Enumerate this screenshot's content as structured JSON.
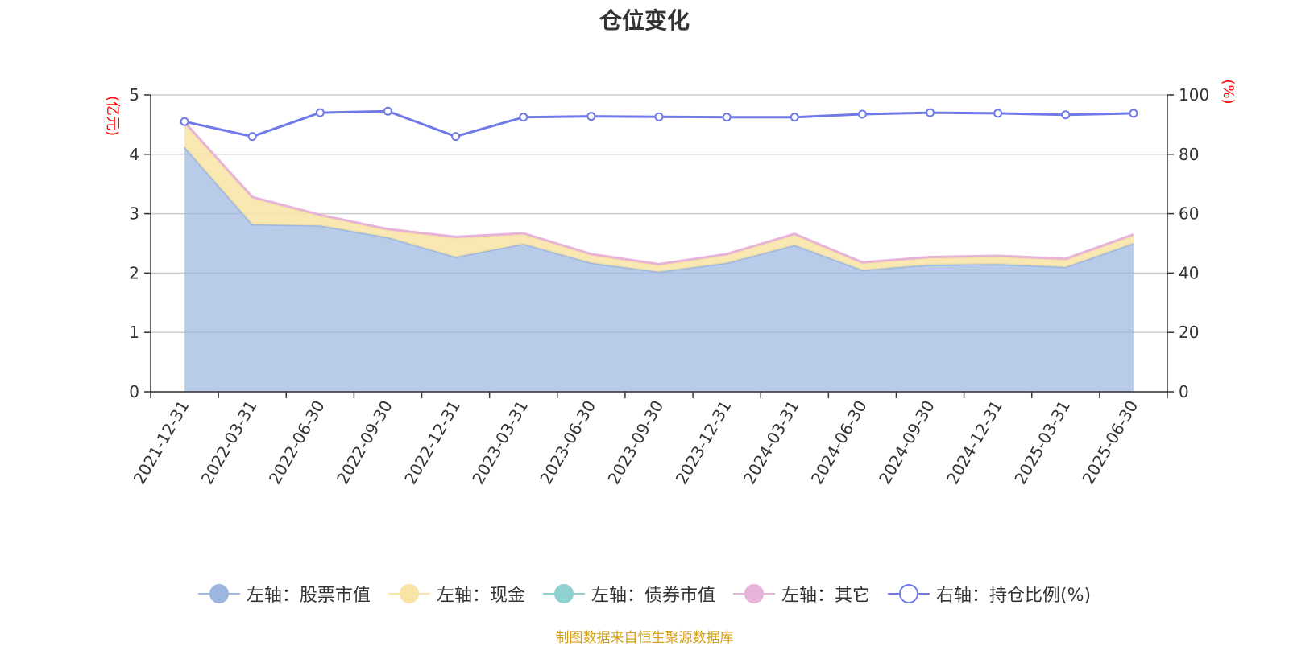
{
  "chart_data": {
    "type": "area",
    "title": "仓位变化",
    "x": [
      "2021-12-31",
      "2022-03-31",
      "2022-06-30",
      "2022-09-30",
      "2022-12-31",
      "2023-03-31",
      "2023-06-30",
      "2023-09-30",
      "2023-12-31",
      "2024-03-31",
      "2024-06-30",
      "2024-09-30",
      "2024-12-31",
      "2025-03-31",
      "2025-06-30"
    ],
    "left_axis": {
      "unit": "(亿元)",
      "ylim": [
        0,
        5
      ],
      "ticks": [
        "0",
        "1",
        "2",
        "3",
        "4",
        "5"
      ]
    },
    "right_axis": {
      "unit": "(%)",
      "ylim": [
        0,
        100
      ],
      "ticks": [
        "0",
        "20",
        "40",
        "60",
        "80",
        "100"
      ]
    },
    "grid": true,
    "stacked": true,
    "legend_position": "bottom",
    "series": [
      {
        "name": "左轴：股票市值",
        "axis": "left",
        "kind": "area",
        "color": "#9db7e0",
        "values": [
          4.12,
          2.82,
          2.8,
          2.6,
          2.27,
          2.49,
          2.17,
          2.02,
          2.17,
          2.47,
          2.05,
          2.14,
          2.15,
          2.1,
          2.5
        ]
      },
      {
        "name": "左轴：现金",
        "axis": "left",
        "kind": "area",
        "color": "#f8e4a5",
        "values": [
          0.4,
          0.44,
          0.16,
          0.12,
          0.32,
          0.16,
          0.13,
          0.11,
          0.13,
          0.17,
          0.11,
          0.11,
          0.12,
          0.12,
          0.13
        ]
      },
      {
        "name": "左轴：债券市值",
        "axis": "left",
        "kind": "area",
        "color": "#8fd0d0",
        "values": [
          0,
          0,
          0,
          0,
          0,
          0,
          0,
          0,
          0,
          0,
          0,
          0,
          0,
          0,
          0
        ]
      },
      {
        "name": "左轴：其它",
        "axis": "left",
        "kind": "area",
        "color": "#e7b3d9",
        "values": [
          0.02,
          0.02,
          0.02,
          0.02,
          0.02,
          0.02,
          0.02,
          0.02,
          0.02,
          0.02,
          0.02,
          0.02,
          0.02,
          0.02,
          0.02
        ]
      },
      {
        "name": "右轴：持仓比例(%)",
        "axis": "right",
        "kind": "line",
        "color": "#7079e8",
        "values": [
          91.0,
          86.0,
          94.0,
          94.5,
          86.0,
          92.5,
          92.8,
          92.6,
          92.5,
          92.5,
          93.5,
          94.0,
          93.8,
          93.3,
          93.8
        ]
      }
    ]
  },
  "footer": {
    "credit": "制图数据来自恒生聚源数据库"
  }
}
